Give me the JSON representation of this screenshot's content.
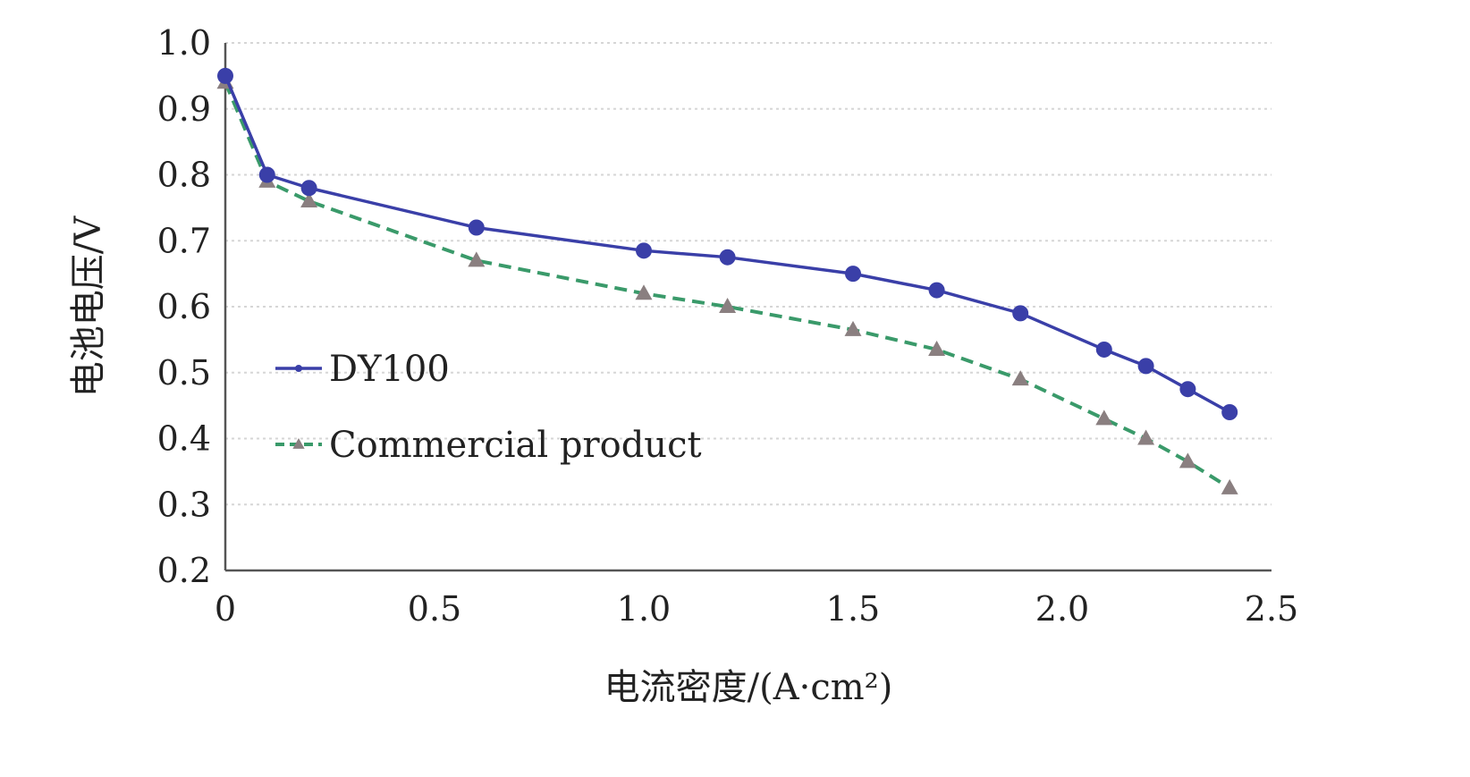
{
  "chart_data": {
    "type": "line",
    "xlabel": "电流密度/(A·cm²)",
    "ylabel": "电池电压/V",
    "xlim": [
      0,
      2.5
    ],
    "ylim": [
      0.2,
      1.0
    ],
    "xticks": [
      "0",
      "0.5",
      "1.0",
      "1.5",
      "2.0",
      "2.5"
    ],
    "yticks": [
      "1.0",
      "0.9",
      "0.8",
      "0.7",
      "0.6",
      "0.5",
      "0.4",
      "0.3",
      "0.2"
    ],
    "grid": "horizontal dotted",
    "legend_position": "center-left",
    "series": [
      {
        "name": "DY100",
        "color": "#3a3fa8",
        "line_style": "solid",
        "marker": "circle",
        "x": [
          0,
          0.1,
          0.2,
          0.6,
          1.0,
          1.2,
          1.5,
          1.7,
          1.9,
          2.1,
          2.2,
          2.3,
          2.4
        ],
        "y": [
          0.95,
          0.8,
          0.78,
          0.72,
          0.685,
          0.675,
          0.65,
          0.625,
          0.59,
          0.535,
          0.51,
          0.475,
          0.44
        ]
      },
      {
        "name": "Commercial product",
        "color": "#3a9a6a",
        "marker_color": "#8a7f80",
        "line_style": "dashed",
        "marker": "triangle",
        "x": [
          0,
          0.1,
          0.2,
          0.6,
          1.0,
          1.2,
          1.5,
          1.7,
          1.9,
          2.1,
          2.2,
          2.3,
          2.4
        ],
        "y": [
          0.94,
          0.79,
          0.76,
          0.67,
          0.62,
          0.6,
          0.565,
          0.535,
          0.49,
          0.43,
          0.4,
          0.365,
          0.325
        ]
      }
    ]
  }
}
